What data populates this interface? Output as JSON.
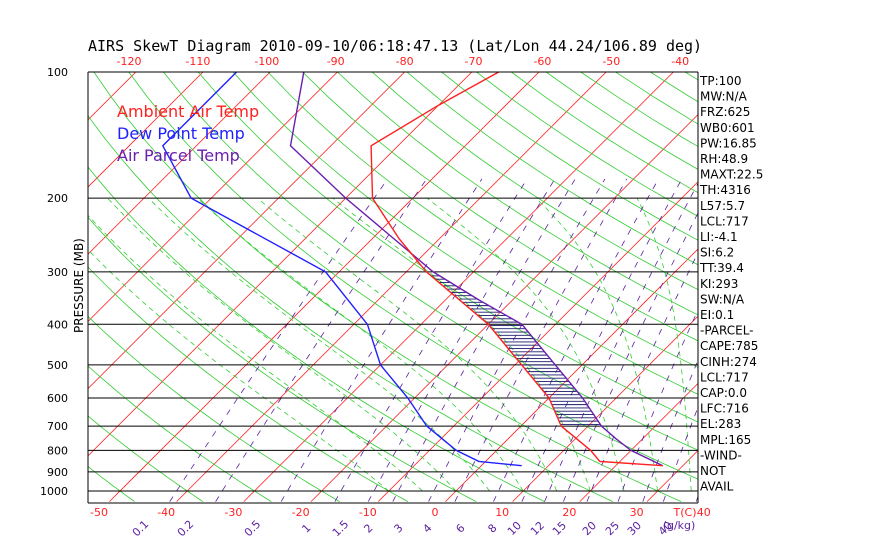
{
  "chart_data": {
    "type": "skewt",
    "title": "AIRS SkewT Diagram 2010-09-10/06:18:47.13 (Lat/Lon 44.24/106.89 deg)",
    "ylabel": "PRESSURE (MB)",
    "xlabel_right": "T(C)",
    "mixing_ratio_unit": "(g/kg)",
    "top_temp_ticks": [
      "-120",
      "-110",
      "-100",
      "-90",
      "-80",
      "-70",
      "-60",
      "-50",
      "-40"
    ],
    "bottom_temp_ticks": [
      "-50",
      "-40",
      "-30",
      "-20",
      "-10",
      "0",
      "10",
      "20",
      "30",
      "40"
    ],
    "mixing_ratio_labels": [
      "0.1",
      "0.2",
      "0.5",
      "1",
      "1.5",
      "2",
      "3",
      "4",
      "6",
      "8",
      "10",
      "12",
      "15",
      "20",
      "25",
      "30",
      "40"
    ],
    "pressure_levels": [
      "100",
      "200",
      "300",
      "400",
      "500",
      "600",
      "700",
      "800",
      "900",
      "1000"
    ],
    "legend": [
      {
        "label": "Ambient Air Temp",
        "color": "#ff2020"
      },
      {
        "label": "Dew Point Temp",
        "color": "#2020ff"
      },
      {
        "label": "Air Parcel Temp",
        "color": "#6a1fb0"
      }
    ],
    "indices": [
      "TP:100",
      "MW:N/A",
      "FRZ:625",
      "WB0:601",
      "PW:16.85",
      "RH:48.9",
      "MAXT:22.5",
      "TH:4316",
      "L57:5.7",
      "LCL:717",
      "LI:-4.1",
      "SI:6.2",
      "TT:39.4",
      "KI:293",
      "SW:N/A",
      "EI:0.1",
      "-PARCEL-",
      "CAPE:785",
      "CINH:274",
      "LCL:717",
      "CAP:0.0",
      "LFC:716",
      "EL:283",
      "MPL:165",
      "-WIND-",
      "NOT",
      "AVAIL"
    ],
    "ambient_temp": {
      "p": [
        100,
        120,
        150,
        200,
        250,
        300,
        400,
        500,
        600,
        700,
        800,
        850,
        870
      ],
      "t": [
        -56,
        -60,
        -64,
        -56,
        -46,
        -37,
        -20,
        -9,
        0,
        6,
        14,
        17,
        27
      ]
    },
    "dewpoint": {
      "p": [
        100,
        150,
        200,
        300,
        400,
        500,
        600,
        700,
        800,
        850,
        870
      ],
      "t": [
        -95,
        -95,
        -83,
        -52,
        -38,
        -30,
        -21,
        -14,
        -6,
        -1,
        6
      ]
    },
    "parcel": {
      "p": [
        100,
        150,
        200,
        300,
        350,
        400,
        500,
        600,
        700,
        750,
        800,
        870
      ],
      "t": [
        -85,
        -76,
        -60,
        -36,
        -25,
        -15,
        -4,
        5,
        12,
        16,
        20,
        27
      ]
    },
    "colors": {
      "isotherm": "#ff2020",
      "dry_adiabat": "#33cc33",
      "mixing_ratio": "#5a1fa0",
      "moist_adiabat": "#33cc33",
      "isobar": "#000000",
      "cape_hatch": "#1a1a6e"
    }
  }
}
